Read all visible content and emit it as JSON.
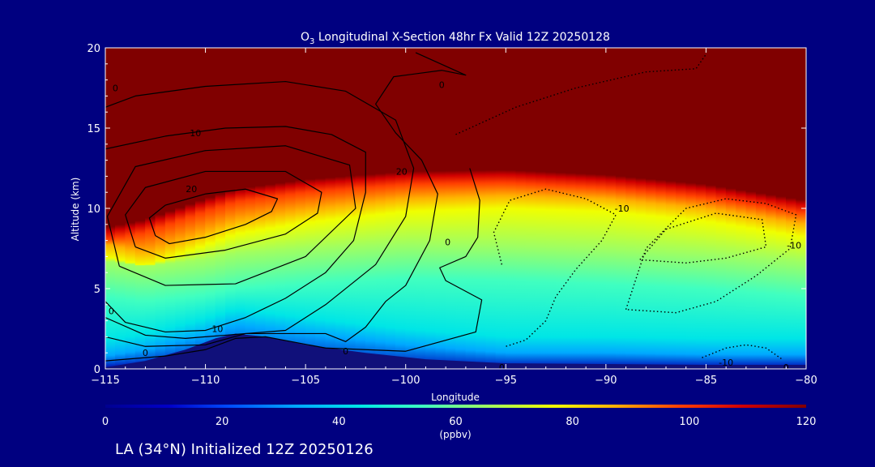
{
  "chart_data": {
    "type": "heatmap",
    "title": {
      "prefix": "O",
      "sub": "3",
      "rest": " Longitudinal X-Section 48hr  Fx Valid 12Z 20250128"
    },
    "xlabel": "Longitude",
    "ylabel": "Altitude (km)",
    "xlim": [
      -115,
      -80
    ],
    "ylim": [
      0,
      20
    ],
    "xticks": [
      -115,
      -110,
      -105,
      -100,
      -95,
      -90,
      -85,
      -80
    ],
    "xtick_labels": [
      "−115",
      "−110",
      "−105",
      "−100",
      "−95",
      "−90",
      "−85",
      "−80"
    ],
    "yticks": [
      0,
      5,
      10,
      15,
      20
    ],
    "ytick_labels": [
      "0",
      "5",
      "10",
      "15",
      "20"
    ],
    "colorbar": {
      "min": 0,
      "max": 120,
      "ticks": [
        0,
        20,
        40,
        60,
        80,
        100,
        120
      ],
      "tick_labels": [
        "0",
        "20",
        "40",
        "60",
        "80",
        "100",
        "120"
      ],
      "unit": "(ppbv)"
    },
    "field_bands": [
      {
        "x": -115,
        "surface_top": 0.2,
        "band_60": 5.5,
        "band_90": 7.8,
        "tropopause": 8.5
      },
      {
        "x": -113,
        "surface_top": 0.6,
        "band_60": 5.2,
        "band_90": 7.2,
        "tropopause": 9.0
      },
      {
        "x": -110,
        "surface_top": 1.5,
        "band_60": 5.6,
        "band_90": 8.5,
        "tropopause": 10.3
      },
      {
        "x": -108.5,
        "surface_top": 2.1,
        "band_60": 6.0,
        "band_90": 9.2,
        "tropopause": 10.9
      },
      {
        "x": -105,
        "surface_top": 1.6,
        "band_60": 6.3,
        "band_90": 9.9,
        "tropopause": 11.5
      },
      {
        "x": -100,
        "surface_top": 0.9,
        "band_60": 6.6,
        "band_90": 10.6,
        "tropopause": 12.0
      },
      {
        "x": -95,
        "surface_top": 0.4,
        "band_60": 6.5,
        "band_90": 10.8,
        "tropopause": 12.1
      },
      {
        "x": -90,
        "surface_top": 0.4,
        "band_60": 6.3,
        "band_90": 10.6,
        "tropopause": 11.8
      },
      {
        "x": -85,
        "surface_top": 0.3,
        "band_60": 6.0,
        "band_90": 10.0,
        "tropopause": 11.2
      },
      {
        "x": -80,
        "surface_top": 0.3,
        "band_60": 5.5,
        "band_90": 9.0,
        "tropopause": 10.2
      }
    ],
    "terrain": [
      [
        -115,
        0.1
      ],
      [
        -113,
        0.5
      ],
      [
        -111,
        1.2
      ],
      [
        -109.5,
        1.9
      ],
      [
        -108.5,
        2.2
      ],
      [
        -107,
        2.0
      ],
      [
        -105,
        1.5
      ],
      [
        -102,
        1.0
      ],
      [
        -99,
        0.6
      ],
      [
        -95,
        0.35
      ],
      [
        -90,
        0.3
      ],
      [
        -85,
        0.25
      ],
      [
        -80,
        0.25
      ]
    ],
    "contours": [
      {
        "level": 20,
        "style": "solid",
        "points": [
          [
            -112.5,
            8.3
          ],
          [
            -112.8,
            9.4
          ],
          [
            -112,
            10.2
          ],
          [
            -110,
            10.9
          ],
          [
            -108,
            11.2
          ],
          [
            -106.4,
            10.6
          ],
          [
            -106.7,
            9.8
          ],
          [
            -108,
            9.0
          ],
          [
            -110,
            8.2
          ],
          [
            -111.8,
            7.8
          ],
          [
            -112.5,
            8.3
          ]
        ]
      },
      {
        "level": 20,
        "style": "solid",
        "points": [
          [
            -113.5,
            7.6
          ],
          [
            -114,
            9.6
          ],
          [
            -113,
            11.3
          ],
          [
            -110,
            12.3
          ],
          [
            -106,
            12.3
          ],
          [
            -104.2,
            11.0
          ],
          [
            -104.4,
            9.7
          ],
          [
            -106,
            8.4
          ],
          [
            -109,
            7.4
          ],
          [
            -112,
            6.9
          ],
          [
            -113.5,
            7.6
          ]
        ]
      },
      {
        "level": 20,
        "style": "solid",
        "points": [
          [
            -114.3,
            6.4
          ],
          [
            -114.9,
            9.5
          ],
          [
            -113.5,
            12.6
          ],
          [
            -110,
            13.6
          ],
          [
            -106,
            13.9
          ],
          [
            -102.8,
            12.7
          ],
          [
            -102.5,
            10.0
          ],
          [
            -105,
            7.0
          ],
          [
            -108.5,
            5.3
          ],
          [
            -112,
            5.2
          ],
          [
            -114.3,
            6.4
          ]
        ]
      },
      {
        "level": 10,
        "style": "solid",
        "points": [
          [
            -115,
            4.2
          ],
          [
            -114,
            2.9
          ],
          [
            -112,
            2.3
          ],
          [
            -110,
            2.4
          ],
          [
            -108,
            3.2
          ],
          [
            -106,
            4.4
          ],
          [
            -104,
            6.0
          ],
          [
            -102.6,
            8.0
          ],
          [
            -102.0,
            11.0
          ],
          [
            -102.0,
            13.5
          ],
          [
            -103.7,
            14.6
          ],
          [
            -106,
            15.1
          ],
          [
            -109,
            15.0
          ],
          [
            -112,
            14.5
          ],
          [
            -115,
            13.7
          ]
        ]
      },
      {
        "level": 10,
        "style": "solid",
        "points": [
          [
            -115,
            3.2
          ],
          [
            -113,
            2.1
          ],
          [
            -111,
            1.9
          ],
          [
            -109,
            2.1
          ],
          [
            -106,
            2.4
          ],
          [
            -104,
            4.0
          ],
          [
            -101.5,
            6.5
          ],
          [
            -100,
            9.5
          ],
          [
            -99.6,
            12.5
          ],
          [
            -100.5,
            15.5
          ],
          [
            -103,
            17.3
          ],
          [
            -106,
            17.9
          ],
          [
            -110,
            17.6
          ],
          [
            -113.5,
            17.0
          ],
          [
            -115,
            16.3
          ]
        ]
      },
      {
        "level": 0,
        "style": "solid",
        "points": [
          [
            -115,
            2.0
          ],
          [
            -113,
            1.4
          ],
          [
            -110,
            1.5
          ],
          [
            -108,
            2.2
          ],
          [
            -104,
            2.2
          ],
          [
            -103,
            1.7
          ],
          [
            -102,
            2.6
          ],
          [
            -101,
            4.2
          ],
          [
            -100,
            5.2
          ],
          [
            -98.8,
            8.0
          ],
          [
            -98.4,
            10.9
          ],
          [
            -99.2,
            13.0
          ],
          [
            -100.5,
            14.7
          ],
          [
            -101.5,
            16.5
          ],
          [
            -100.6,
            18.2
          ],
          [
            -98.2,
            18.6
          ],
          [
            -97.0,
            18.3
          ],
          [
            -99.5,
            19.7
          ]
        ]
      },
      {
        "level": 0,
        "style": "solid",
        "points": [
          [
            -115,
            0.5
          ],
          [
            -112,
            0.8
          ],
          [
            -110,
            1.2
          ],
          [
            -108.5,
            1.9
          ],
          [
            -107,
            2.0
          ],
          [
            -104,
            1.3
          ],
          [
            -100,
            1.1
          ],
          [
            -96.5,
            2.3
          ],
          [
            -96.2,
            4.3
          ],
          [
            -98.0,
            5.5
          ],
          [
            -98.3,
            6.3
          ],
          [
            -97.0,
            7.0
          ],
          [
            -96.4,
            8.2
          ],
          [
            -96.3,
            10.5
          ],
          [
            -96.8,
            12.5
          ]
        ]
      },
      {
        "level": -10,
        "style": "dotted",
        "points": [
          [
            -95.2,
            6.5
          ],
          [
            -95.6,
            8.5
          ],
          [
            -94.8,
            10.5
          ],
          [
            -93.0,
            11.2
          ],
          [
            -91.0,
            10.6
          ],
          [
            -89.5,
            9.6
          ],
          [
            -90.2,
            8.0
          ],
          [
            -91.5,
            6.2
          ],
          [
            -92.5,
            4.5
          ],
          [
            -93.0,
            3.0
          ],
          [
            -94.0,
            1.8
          ],
          [
            -95.0,
            1.4
          ]
        ]
      },
      {
        "level": -10,
        "style": "dotted",
        "points": [
          [
            -89.0,
            3.7
          ],
          [
            -88.0,
            7.5
          ],
          [
            -86.0,
            10.0
          ],
          [
            -84.0,
            10.6
          ],
          [
            -82.0,
            10.3
          ],
          [
            -80.5,
            9.6
          ],
          [
            -80.8,
            7.5
          ],
          [
            -82.5,
            5.8
          ],
          [
            -84.5,
            4.2
          ],
          [
            -86.5,
            3.5
          ],
          [
            -89.0,
            3.7
          ]
        ]
      },
      {
        "level": -10,
        "style": "dotted",
        "points": [
          [
            -88.3,
            6.8
          ],
          [
            -87.0,
            8.7
          ],
          [
            -84.5,
            9.7
          ],
          [
            -82.2,
            9.3
          ],
          [
            -82.0,
            7.6
          ],
          [
            -84.0,
            6.9
          ],
          [
            -86.0,
            6.6
          ],
          [
            -88.3,
            6.8
          ]
        ]
      },
      {
        "level": -10,
        "style": "dotted",
        "points": [
          [
            -97.5,
            14.6
          ],
          [
            -94.5,
            16.3
          ],
          [
            -91.5,
            17.5
          ],
          [
            -88.0,
            18.5
          ],
          [
            -85.5,
            18.7
          ],
          [
            -85.0,
            19.6
          ]
        ]
      },
      {
        "level": -10,
        "style": "dotted",
        "points": [
          [
            -85.2,
            0.7
          ],
          [
            -84.0,
            1.3
          ],
          [
            -83.0,
            1.5
          ],
          [
            -82.0,
            1.3
          ],
          [
            -81.2,
            0.6
          ]
        ]
      }
    ],
    "contour_labels": [
      {
        "text": "0",
        "x": -114.5,
        "y": 17.5
      },
      {
        "text": "0",
        "x": -98.2,
        "y": 17.7
      },
      {
        "text": "10",
        "x": -110.5,
        "y": 14.7
      },
      {
        "text": "20",
        "x": -110.7,
        "y": 11.2
      },
      {
        "text": "20",
        "x": -100.2,
        "y": 12.3
      },
      {
        "text": "0",
        "x": -97.9,
        "y": 7.9
      },
      {
        "text": "0",
        "x": -114.7,
        "y": 3.6
      },
      {
        "text": "10",
        "x": -109.4,
        "y": 2.5
      },
      {
        "text": "0",
        "x": -113.0,
        "y": 1.0
      },
      {
        "text": "0",
        "x": -103.0,
        "y": 1.1
      },
      {
        "text": "-10",
        "x": -89.2,
        "y": 10.0
      },
      {
        "text": "-10",
        "x": -80.6,
        "y": 7.7
      },
      {
        "text": "-10",
        "x": -84.0,
        "y": 0.4
      },
      {
        "text": "0",
        "x": -95.2,
        "y": 0.1
      },
      {
        "text": "0",
        "x": -81.0,
        "y": 0.1
      }
    ],
    "colors": {
      "background": "#000080",
      "stratosphere": "#800000",
      "terrain": "#10107a",
      "contour": "#000000",
      "text": "#ffffff"
    },
    "colormap": [
      "#000090",
      "#0000c8",
      "#0050ff",
      "#00a8ff",
      "#00e6e6",
      "#40ffc0",
      "#a0ff60",
      "#f0ff00",
      "#ffb000",
      "#ff4000",
      "#d00000",
      "#800000"
    ]
  },
  "footer": "LA (34°N) Initialized 12Z 20250126"
}
